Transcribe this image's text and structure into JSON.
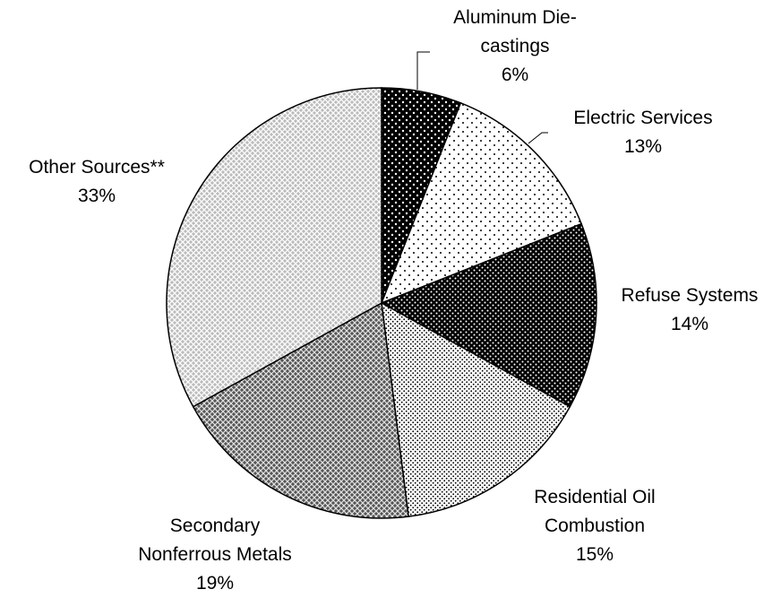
{
  "chart_data": {
    "type": "pie",
    "categories": [
      "Aluminum Die-castings",
      "Electric Services",
      "Refuse Systems",
      "Residential Oil Combustion",
      "Secondary Nonferrous Metals",
      "Other Sources**"
    ],
    "values": [
      6,
      13,
      14,
      15,
      19,
      33
    ],
    "value_labels": [
      "6%",
      "13%",
      "14%",
      "15%",
      "19%",
      "33%"
    ]
  }
}
